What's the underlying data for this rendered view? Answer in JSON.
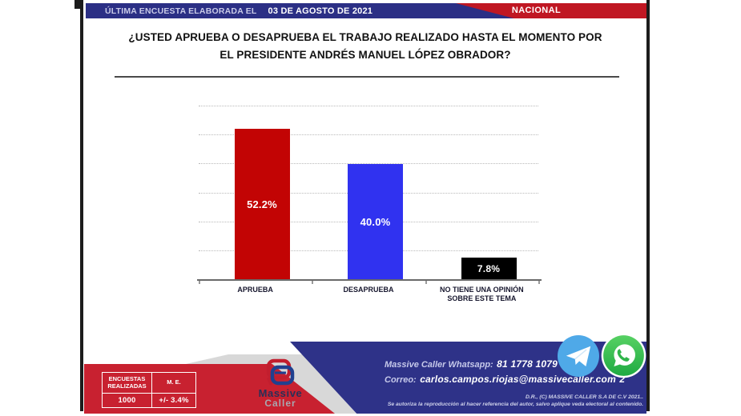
{
  "header": {
    "label": "ÚLTIMA ENCUESTA ELABORADA EL",
    "date": "03 DE AGOSTO DE 2021",
    "region": "NACIONAL"
  },
  "question": {
    "line1": "¿USTED APRUEBA O DESAPRUEBA EL TRABAJO REALIZADO HASTA EL MOMENTO POR",
    "line2": "EL PRESIDENTE ANDRÉS MANUEL LÓPEZ OBRADOR?"
  },
  "chart_data": {
    "type": "bar",
    "categories": [
      "APRUEBA",
      "DESAPRUEBA",
      "NO TIENE UNA OPINIÓN SOBRE ESTE TEMA"
    ],
    "values": [
      52.2,
      40.0,
      7.8
    ],
    "value_labels": [
      "52.2%",
      "40.0%",
      "7.8%"
    ],
    "bar_colors": [
      "#c20404",
      "#3032f0",
      "#000000"
    ],
    "title": "¿USTED APRUEBA O DESAPRUEBA EL TRABAJO REALIZADO HASTA EL MOMENTO POR EL PRESIDENTE ANDRÉS MANUEL LÓPEZ OBRADOR?",
    "xlabel": "",
    "ylabel": "",
    "ylim": [
      0,
      60
    ],
    "gridline_step": 10,
    "grid": "horizontal-dotted",
    "legend": "none"
  },
  "stats_table": {
    "header_col1": "ENCUESTAS REALIZADAS",
    "header_col2": "M. E.",
    "value_col1": "1000",
    "value_col2": "+/- 3.4%"
  },
  "logo": {
    "line1": "Massive",
    "line2": "Caller"
  },
  "contact": {
    "whatsapp_label": "Massive Caller Whatsapp:",
    "whatsapp_number": "81 1778 1079",
    "email_label": "Correo:",
    "email": "carlos.campos.riojas@massivecaller.com",
    "email_suffix": "2"
  },
  "copyright": {
    "line1": "D.R., (C) MASSIVE CALLER S.A DE C.V 2021..",
    "line2": "Se autoriza la reproducción al hacer referencia del autor, salvo aplique  veda electoral al contenido."
  },
  "colors": {
    "header_blue": "#2b2f85",
    "header_red": "#c01723",
    "banner_blue": "#2e3288",
    "banner_red": "#c82130",
    "banner_gray": "#d8d8d8",
    "bar_red": "#c20404",
    "bar_blue": "#3032f0",
    "bar_black": "#000000",
    "telegram_blue": "#4fa9e8",
    "whatsapp_green": "#2fc248"
  }
}
